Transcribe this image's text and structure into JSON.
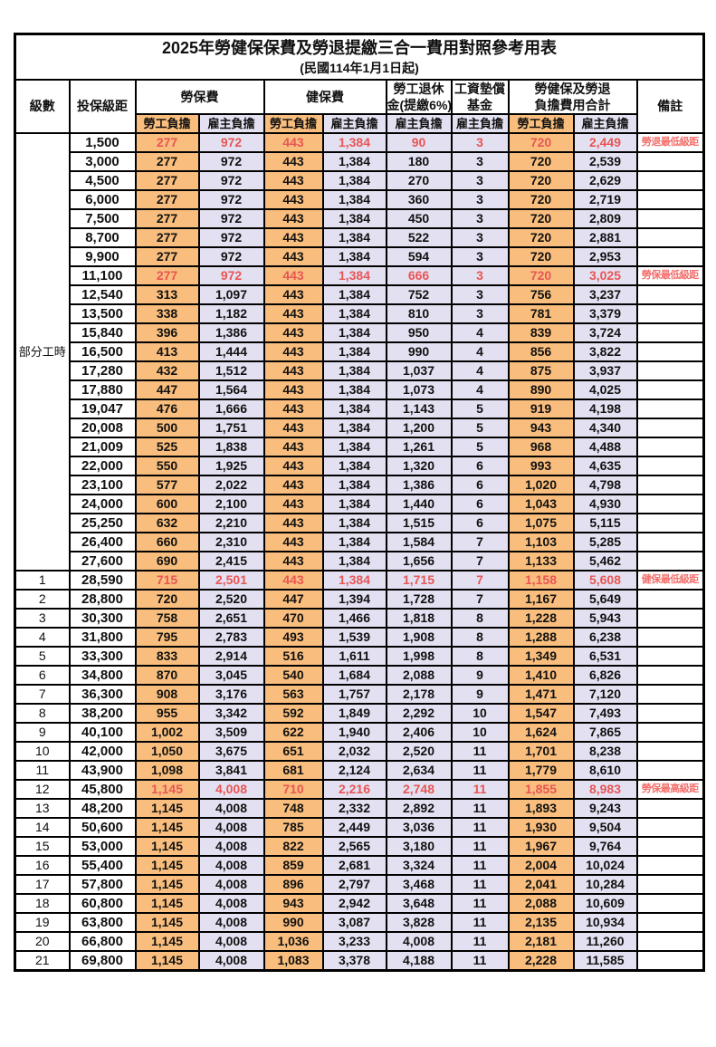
{
  "title": "2025年勞健保保費及勞退提繳三合一費用對照參考用表",
  "subtitle": "(民國114年1月1日起)",
  "header": {
    "level": "級數",
    "bracket": "投保級距",
    "labor_ins": "勞保費",
    "health_ins": "健保費",
    "pension_line1": "勞工退休",
    "pension_line2": "金(提繳6%)",
    "wage_fund_line1": "工資墊償",
    "wage_fund_line2": "基金",
    "total_line1": "勞健保及勞退",
    "total_line2": "負擔費用合計",
    "remark": "備註",
    "employee": "勞工負擔",
    "employer": "雇主負擔"
  },
  "part_time_label": "部分工時",
  "part_time_rowspan": 23,
  "colors": {
    "employee_column_bg": "#f9be7d",
    "employer_column_bg": "#e3e1f1",
    "highlight_value_red": "#e85555",
    "remark_red": "#f2706c",
    "border": "#000000"
  },
  "rows": [
    {
      "level": "",
      "bracket": "1,500",
      "fees": [
        "277",
        "972",
        "443",
        "1,384",
        "90",
        "3",
        "720",
        "2,449"
      ],
      "remark": "勞退最低級距",
      "highlight": true
    },
    {
      "level": "",
      "bracket": "3,000",
      "fees": [
        "277",
        "972",
        "443",
        "1,384",
        "180",
        "3",
        "720",
        "2,539"
      ],
      "remark": "",
      "highlight": false
    },
    {
      "level": "",
      "bracket": "4,500",
      "fees": [
        "277",
        "972",
        "443",
        "1,384",
        "270",
        "3",
        "720",
        "2,629"
      ],
      "remark": "",
      "highlight": false
    },
    {
      "level": "",
      "bracket": "6,000",
      "fees": [
        "277",
        "972",
        "443",
        "1,384",
        "360",
        "3",
        "720",
        "2,719"
      ],
      "remark": "",
      "highlight": false
    },
    {
      "level": "",
      "bracket": "7,500",
      "fees": [
        "277",
        "972",
        "443",
        "1,384",
        "450",
        "3",
        "720",
        "2,809"
      ],
      "remark": "",
      "highlight": false
    },
    {
      "level": "",
      "bracket": "8,700",
      "fees": [
        "277",
        "972",
        "443",
        "1,384",
        "522",
        "3",
        "720",
        "2,881"
      ],
      "remark": "",
      "highlight": false
    },
    {
      "level": "",
      "bracket": "9,900",
      "fees": [
        "277",
        "972",
        "443",
        "1,384",
        "594",
        "3",
        "720",
        "2,953"
      ],
      "remark": "",
      "highlight": false
    },
    {
      "level": "",
      "bracket": "11,100",
      "fees": [
        "277",
        "972",
        "443",
        "1,384",
        "666",
        "3",
        "720",
        "3,025"
      ],
      "remark": "勞保最低級距",
      "highlight": true
    },
    {
      "level": "",
      "bracket": "12,540",
      "fees": [
        "313",
        "1,097",
        "443",
        "1,384",
        "752",
        "3",
        "756",
        "3,237"
      ],
      "remark": "",
      "highlight": false
    },
    {
      "level": "",
      "bracket": "13,500",
      "fees": [
        "338",
        "1,182",
        "443",
        "1,384",
        "810",
        "3",
        "781",
        "3,379"
      ],
      "remark": "",
      "highlight": false
    },
    {
      "level": "",
      "bracket": "15,840",
      "fees": [
        "396",
        "1,386",
        "443",
        "1,384",
        "950",
        "4",
        "839",
        "3,724"
      ],
      "remark": "",
      "highlight": false
    },
    {
      "level": "",
      "bracket": "16,500",
      "fees": [
        "413",
        "1,444",
        "443",
        "1,384",
        "990",
        "4",
        "856",
        "3,822"
      ],
      "remark": "",
      "highlight": false
    },
    {
      "level": "",
      "bracket": "17,280",
      "fees": [
        "432",
        "1,512",
        "443",
        "1,384",
        "1,037",
        "4",
        "875",
        "3,937"
      ],
      "remark": "",
      "highlight": false
    },
    {
      "level": "",
      "bracket": "17,880",
      "fees": [
        "447",
        "1,564",
        "443",
        "1,384",
        "1,073",
        "4",
        "890",
        "4,025"
      ],
      "remark": "",
      "highlight": false
    },
    {
      "level": "",
      "bracket": "19,047",
      "fees": [
        "476",
        "1,666",
        "443",
        "1,384",
        "1,143",
        "5",
        "919",
        "4,198"
      ],
      "remark": "",
      "highlight": false
    },
    {
      "level": "",
      "bracket": "20,008",
      "fees": [
        "500",
        "1,751",
        "443",
        "1,384",
        "1,200",
        "5",
        "943",
        "4,340"
      ],
      "remark": "",
      "highlight": false
    },
    {
      "level": "",
      "bracket": "21,009",
      "fees": [
        "525",
        "1,838",
        "443",
        "1,384",
        "1,261",
        "5",
        "968",
        "4,488"
      ],
      "remark": "",
      "highlight": false
    },
    {
      "level": "",
      "bracket": "22,000",
      "fees": [
        "550",
        "1,925",
        "443",
        "1,384",
        "1,320",
        "6",
        "993",
        "4,635"
      ],
      "remark": "",
      "highlight": false
    },
    {
      "level": "",
      "bracket": "23,100",
      "fees": [
        "577",
        "2,022",
        "443",
        "1,384",
        "1,386",
        "6",
        "1,020",
        "4,798"
      ],
      "remark": "",
      "highlight": false
    },
    {
      "level": "",
      "bracket": "24,000",
      "fees": [
        "600",
        "2,100",
        "443",
        "1,384",
        "1,440",
        "6",
        "1,043",
        "4,930"
      ],
      "remark": "",
      "highlight": false
    },
    {
      "level": "",
      "bracket": "25,250",
      "fees": [
        "632",
        "2,210",
        "443",
        "1,384",
        "1,515",
        "6",
        "1,075",
        "5,115"
      ],
      "remark": "",
      "highlight": false
    },
    {
      "level": "",
      "bracket": "26,400",
      "fees": [
        "660",
        "2,310",
        "443",
        "1,384",
        "1,584",
        "7",
        "1,103",
        "5,285"
      ],
      "remark": "",
      "highlight": false
    },
    {
      "level": "",
      "bracket": "27,600",
      "fees": [
        "690",
        "2,415",
        "443",
        "1,384",
        "1,656",
        "7",
        "1,133",
        "5,462"
      ],
      "remark": "",
      "highlight": false
    },
    {
      "level": "1",
      "bracket": "28,590",
      "fees": [
        "715",
        "2,501",
        "443",
        "1,384",
        "1,715",
        "7",
        "1,158",
        "5,608"
      ],
      "remark": "健保最低級距",
      "highlight": true
    },
    {
      "level": "2",
      "bracket": "28,800",
      "fees": [
        "720",
        "2,520",
        "447",
        "1,394",
        "1,728",
        "7",
        "1,167",
        "5,649"
      ],
      "remark": "",
      "highlight": false
    },
    {
      "level": "3",
      "bracket": "30,300",
      "fees": [
        "758",
        "2,651",
        "470",
        "1,466",
        "1,818",
        "8",
        "1,228",
        "5,943"
      ],
      "remark": "",
      "highlight": false
    },
    {
      "level": "4",
      "bracket": "31,800",
      "fees": [
        "795",
        "2,783",
        "493",
        "1,539",
        "1,908",
        "8",
        "1,288",
        "6,238"
      ],
      "remark": "",
      "highlight": false
    },
    {
      "level": "5",
      "bracket": "33,300",
      "fees": [
        "833",
        "2,914",
        "516",
        "1,611",
        "1,998",
        "8",
        "1,349",
        "6,531"
      ],
      "remark": "",
      "highlight": false
    },
    {
      "level": "6",
      "bracket": "34,800",
      "fees": [
        "870",
        "3,045",
        "540",
        "1,684",
        "2,088",
        "9",
        "1,410",
        "6,826"
      ],
      "remark": "",
      "highlight": false
    },
    {
      "level": "7",
      "bracket": "36,300",
      "fees": [
        "908",
        "3,176",
        "563",
        "1,757",
        "2,178",
        "9",
        "1,471",
        "7,120"
      ],
      "remark": "",
      "highlight": false
    },
    {
      "level": "8",
      "bracket": "38,200",
      "fees": [
        "955",
        "3,342",
        "592",
        "1,849",
        "2,292",
        "10",
        "1,547",
        "7,493"
      ],
      "remark": "",
      "highlight": false
    },
    {
      "level": "9",
      "bracket": "40,100",
      "fees": [
        "1,002",
        "3,509",
        "622",
        "1,940",
        "2,406",
        "10",
        "1,624",
        "7,865"
      ],
      "remark": "",
      "highlight": false
    },
    {
      "level": "10",
      "bracket": "42,000",
      "fees": [
        "1,050",
        "3,675",
        "651",
        "2,032",
        "2,520",
        "11",
        "1,701",
        "8,238"
      ],
      "remark": "",
      "highlight": false
    },
    {
      "level": "11",
      "bracket": "43,900",
      "fees": [
        "1,098",
        "3,841",
        "681",
        "2,124",
        "2,634",
        "11",
        "1,779",
        "8,610"
      ],
      "remark": "",
      "highlight": false
    },
    {
      "level": "12",
      "bracket": "45,800",
      "fees": [
        "1,145",
        "4,008",
        "710",
        "2,216",
        "2,748",
        "11",
        "1,855",
        "8,983"
      ],
      "remark": "勞保最高級距",
      "highlight": true
    },
    {
      "level": "13",
      "bracket": "48,200",
      "fees": [
        "1,145",
        "4,008",
        "748",
        "2,332",
        "2,892",
        "11",
        "1,893",
        "9,243"
      ],
      "remark": "",
      "highlight": false
    },
    {
      "level": "14",
      "bracket": "50,600",
      "fees": [
        "1,145",
        "4,008",
        "785",
        "2,449",
        "3,036",
        "11",
        "1,930",
        "9,504"
      ],
      "remark": "",
      "highlight": false
    },
    {
      "level": "15",
      "bracket": "53,000",
      "fees": [
        "1,145",
        "4,008",
        "822",
        "2,565",
        "3,180",
        "11",
        "1,967",
        "9,764"
      ],
      "remark": "",
      "highlight": false
    },
    {
      "level": "16",
      "bracket": "55,400",
      "fees": [
        "1,145",
        "4,008",
        "859",
        "2,681",
        "3,324",
        "11",
        "2,004",
        "10,024"
      ],
      "remark": "",
      "highlight": false
    },
    {
      "level": "17",
      "bracket": "57,800",
      "fees": [
        "1,145",
        "4,008",
        "896",
        "2,797",
        "3,468",
        "11",
        "2,041",
        "10,284"
      ],
      "remark": "",
      "highlight": false
    },
    {
      "level": "18",
      "bracket": "60,800",
      "fees": [
        "1,145",
        "4,008",
        "943",
        "2,942",
        "3,648",
        "11",
        "2,088",
        "10,609"
      ],
      "remark": "",
      "highlight": false
    },
    {
      "level": "19",
      "bracket": "63,800",
      "fees": [
        "1,145",
        "4,008",
        "990",
        "3,087",
        "3,828",
        "11",
        "2,135",
        "10,934"
      ],
      "remark": "",
      "highlight": false
    },
    {
      "level": "20",
      "bracket": "66,800",
      "fees": [
        "1,145",
        "4,008",
        "1,036",
        "3,233",
        "4,008",
        "11",
        "2,181",
        "11,260"
      ],
      "remark": "",
      "highlight": false
    },
    {
      "level": "21",
      "bracket": "69,800",
      "fees": [
        "1,145",
        "4,008",
        "1,083",
        "3,378",
        "4,188",
        "11",
        "2,228",
        "11,585"
      ],
      "remark": "",
      "highlight": false
    }
  ]
}
